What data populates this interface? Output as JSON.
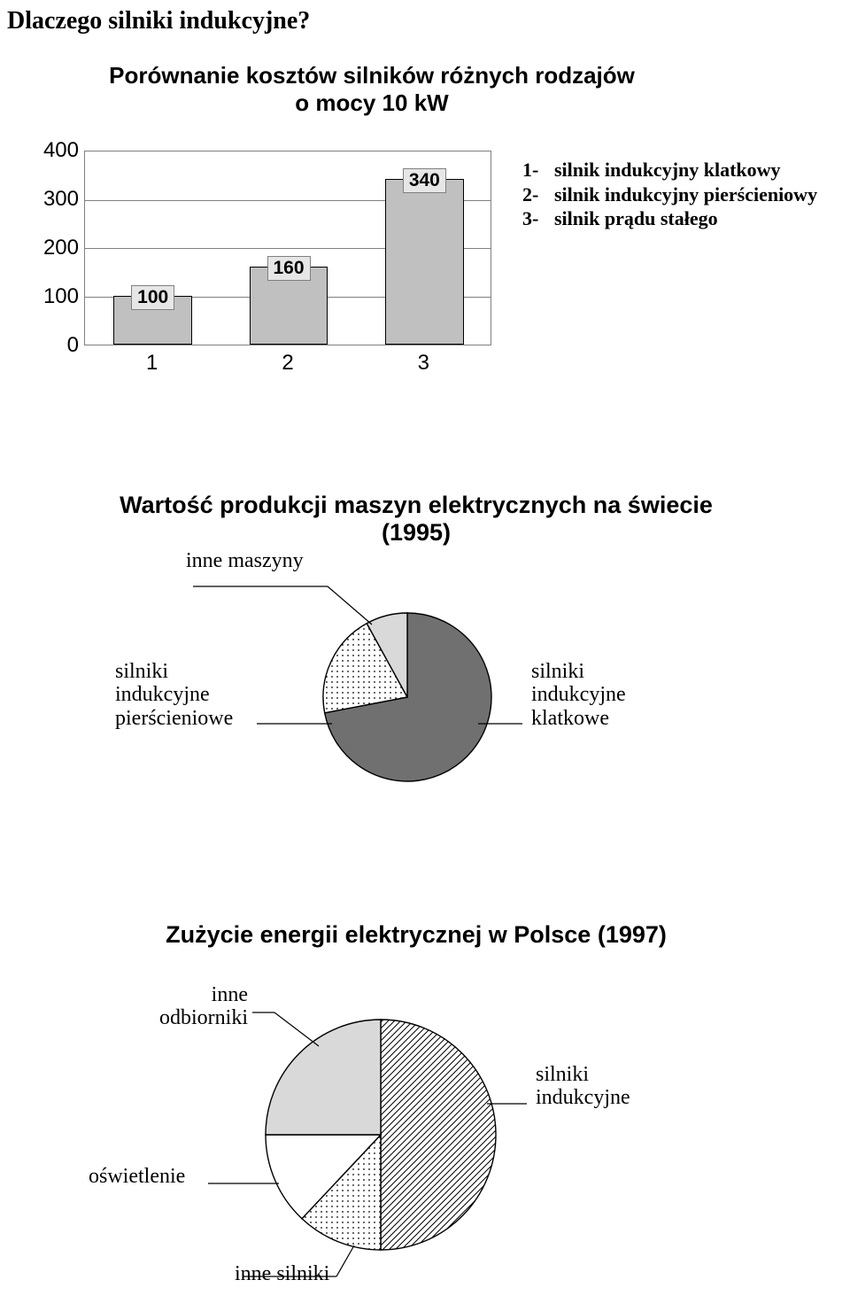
{
  "heading": "Dlaczego silniki indukcyjne?",
  "bar_chart": {
    "title": "Porównanie kosztów silników różnych rodzajów o mocy 10 kW",
    "type": "bar",
    "ylim": [
      0,
      400
    ],
    "ytick_step": 100,
    "yticks": [
      0,
      100,
      200,
      300,
      400
    ],
    "categories": [
      "1",
      "2",
      "3"
    ],
    "values": [
      100,
      160,
      340
    ],
    "bar_fill": "#c0c0c0",
    "bar_border": "#000000",
    "grid_color": "#808080",
    "background_color": "#ffffff",
    "value_label_bg": "#e6e6e6",
    "axis_fontsize": 24,
    "value_fontsize": 21,
    "bar_width": 0.58,
    "legend": [
      {
        "num": "1-",
        "text": "silnik indukcyjny klatkowy"
      },
      {
        "num": "2-",
        "text": "silnik indukcyjny pierścieniowy"
      },
      {
        "num": "3-",
        "text": "silnik prądu stałego"
      }
    ]
  },
  "pie1": {
    "type": "pie",
    "title": "Wartość produkcji maszyn elektrycznych na świecie (1995)",
    "slices": [
      {
        "label": "silniki indukcyjne klatkowe",
        "value": 72,
        "fill": "#707070",
        "pattern": "solid"
      },
      {
        "label": "inne maszyny",
        "value": 20,
        "fill": "#ffffff",
        "pattern": "dots"
      },
      {
        "label": "silniki indukcyjne pierścieniowe",
        "value": 8,
        "fill": "#d9d9d9",
        "pattern": "solid"
      }
    ],
    "border_color": "#000000",
    "callouts": {
      "top": "inne maszyny",
      "left_l1": "silniki",
      "left_l2": "indukcyjne",
      "left_l3": "pierścieniowe",
      "right_l1": "silniki",
      "right_l2": "indukcyjne",
      "right_l3": "klatkowe"
    }
  },
  "pie2": {
    "type": "pie",
    "title": "Zużycie energii elektrycznej w Polsce (1997)",
    "slices": [
      {
        "label": "silniki indukcyjne",
        "value": 50,
        "fill": "#ffffff",
        "pattern": "diagonal"
      },
      {
        "label": "inne silniki",
        "value": 12,
        "fill": "#ffffff",
        "pattern": "dots"
      },
      {
        "label": "oświetlenie",
        "value": 13,
        "fill": "#ffffff",
        "pattern": "solid"
      },
      {
        "label": "inne odbiorniki",
        "value": 25,
        "fill": "#d9d9d9",
        "pattern": "solid"
      }
    ],
    "border_color": "#000000",
    "callouts": {
      "top_l1": "inne",
      "top_l2": "odbiorniki",
      "right_l1": "silniki",
      "right_l2": "indukcyjne",
      "left": "oświetlenie",
      "bottom": "inne silniki"
    }
  },
  "colors": {
    "text": "#000000",
    "bg": "#ffffff"
  }
}
